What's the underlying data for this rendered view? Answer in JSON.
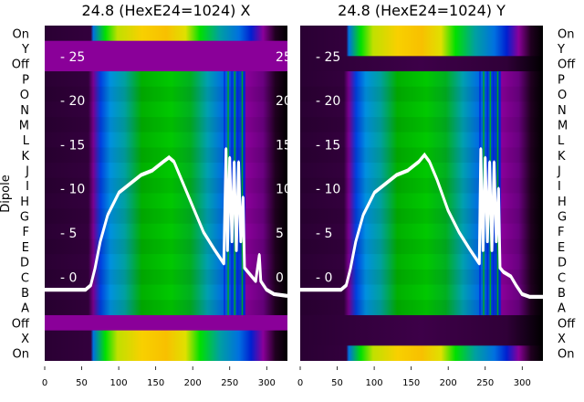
{
  "chart_data": [
    {
      "type": "heatmap",
      "title": "24.8 (HexE24=1024) X",
      "ylabel": "Dipole",
      "row_labels": [
        "On",
        "Y",
        "Off",
        "P",
        "O",
        "N",
        "M",
        "L",
        "K",
        "J",
        "I",
        "H",
        "G",
        "F",
        "E",
        "D",
        "C",
        "B",
        "A",
        "Off",
        "X",
        "On"
      ],
      "row_kind": [
        "spectrum",
        "off",
        "off",
        "beam",
        "beam",
        "beam",
        "beam",
        "beam",
        "beam",
        "beam",
        "beam",
        "beam",
        "beam",
        "beam",
        "beam",
        "beam",
        "beam",
        "beam",
        "beam",
        "off",
        "spectrum",
        "spectrum"
      ],
      "xticks": [
        0,
        50,
        100,
        150,
        200,
        250,
        300
      ],
      "xlim": [
        0,
        328
      ],
      "inner_yticks": [
        0,
        5,
        10,
        15,
        20,
        25
      ],
      "inner_ylim": [
        -9.5,
        28.5
      ],
      "curve": {
        "x": [
          0,
          55,
          62,
          68,
          75,
          85,
          100,
          115,
          130,
          145,
          160,
          168,
          175,
          185,
          200,
          215,
          230,
          242,
          245,
          247,
          250,
          253,
          256,
          259,
          262,
          265,
          268,
          270,
          275,
          285,
          290,
          292,
          300,
          310,
          328
        ],
        "y": [
          -1.5,
          -1.5,
          -1,
          1,
          4,
          7,
          9.5,
          10.5,
          11.5,
          12,
          13,
          13.5,
          13,
          11,
          8,
          5,
          3,
          1.5,
          14.5,
          3,
          13.5,
          4,
          13,
          3,
          13,
          4,
          9,
          1,
          0.5,
          -0.5,
          2.5,
          -0.5,
          -1.5,
          -2,
          -2.2
        ]
      }
    },
    {
      "type": "heatmap",
      "title": "24.8 (HexE24=1024) Y",
      "row_labels": [
        "On",
        "Y",
        "Off",
        "P",
        "O",
        "N",
        "M",
        "L",
        "K",
        "J",
        "I",
        "H",
        "G",
        "F",
        "E",
        "D",
        "C",
        "B",
        "A",
        "Off",
        "X",
        "On"
      ],
      "row_kind": [
        "spectrum",
        "spectrum",
        "dark",
        "beam",
        "beam",
        "beam",
        "beam",
        "beam",
        "beam",
        "beam",
        "beam",
        "beam",
        "beam",
        "beam",
        "beam",
        "beam",
        "beam",
        "beam",
        "beam",
        "dark",
        "dark",
        "spectrum"
      ],
      "xticks": [
        0,
        50,
        100,
        150,
        200,
        250,
        300
      ],
      "xlim": [
        0,
        328
      ],
      "inner_yticks": [
        0,
        5,
        10,
        15,
        20,
        25
      ],
      "inner_ylim": [
        -9.5,
        28.5
      ],
      "curve": {
        "x": [
          0,
          55,
          62,
          68,
          75,
          85,
          100,
          115,
          130,
          145,
          160,
          168,
          175,
          185,
          200,
          215,
          230,
          242,
          244,
          247,
          250,
          253,
          256,
          259,
          262,
          265,
          268,
          270,
          275,
          285,
          292,
          300,
          310,
          328
        ],
        "y": [
          -1.5,
          -1.5,
          -1,
          1,
          4,
          7,
          9.5,
          10.5,
          11.5,
          12,
          13,
          13.8,
          13,
          11,
          7.5,
          5,
          3,
          1.5,
          14.5,
          3,
          13.5,
          4,
          13,
          3,
          13,
          4,
          10,
          1,
          0.5,
          0,
          -1,
          -2,
          -2.3,
          -2.3
        ]
      }
    }
  ],
  "colors": {
    "dark": "#2a0033",
    "purple": "#8a0099",
    "blue": "#0088dd",
    "green": "#00c000",
    "yellow": "#f8c800",
    "curve": "#ffffff"
  }
}
